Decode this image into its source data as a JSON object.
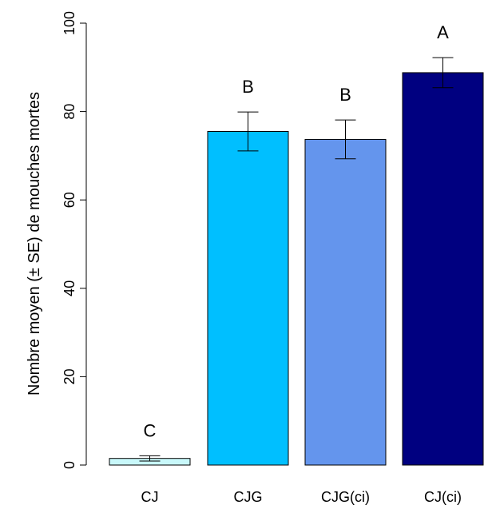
{
  "chart_data": {
    "type": "bar",
    "title": "",
    "xlabel": "",
    "ylabel": "Nombre moyen (± SE) de mouches mortes",
    "categories": [
      "CJ",
      "CJG",
      "CJG(ci)",
      "CJ(ci)"
    ],
    "values": [
      1.5,
      75.5,
      73.7,
      88.8
    ],
    "se": [
      0.6,
      4.4,
      4.4,
      3.4
    ],
    "letters": [
      "C",
      "B",
      "B",
      "A"
    ],
    "colors": [
      "#c8f8fa",
      "#00bfff",
      "#6495ed",
      "#000080"
    ],
    "ylim": [
      0,
      100
    ],
    "yticks": [
      0,
      20,
      40,
      60,
      80,
      100
    ],
    "grid": false,
    "legend": "none"
  }
}
